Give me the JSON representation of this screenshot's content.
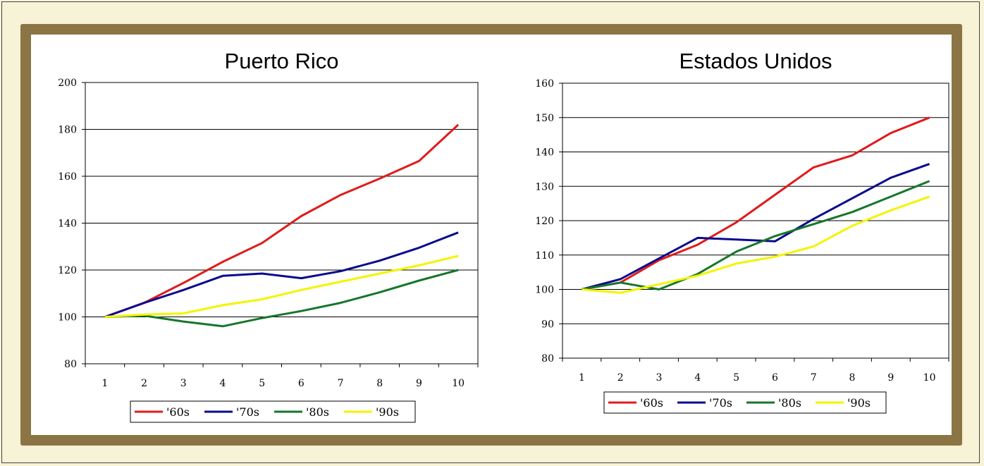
{
  "chart_data": [
    {
      "type": "line",
      "title": "Puerto Rico",
      "x": [
        1,
        2,
        3,
        4,
        5,
        6,
        7,
        8,
        9,
        10
      ],
      "ylim": [
        80,
        200
      ],
      "yticks": [
        80,
        100,
        120,
        140,
        160,
        180,
        200
      ],
      "grid": true,
      "legend": "bottom",
      "series": [
        {
          "name": "'60s",
          "color": "#e01b1b",
          "values": [
            100,
            106,
            114.5,
            123.5,
            131.5,
            143,
            152,
            159,
            166.5,
            182
          ]
        },
        {
          "name": "'70s",
          "color": "#0a0a8c",
          "values": [
            100,
            106,
            111.5,
            117.5,
            118.5,
            116.5,
            119.5,
            124,
            129.5,
            136
          ]
        },
        {
          "name": "'80s",
          "color": "#16762a",
          "values": [
            100,
            100.5,
            98,
            96,
            99.5,
            102.5,
            106,
            110.5,
            115.5,
            120
          ]
        },
        {
          "name": "'90s",
          "color": "#f4f400",
          "values": [
            100,
            101,
            101.5,
            105,
            107.5,
            111.5,
            115,
            118.5,
            122,
            126
          ]
        }
      ]
    },
    {
      "type": "line",
      "title": "Estados Unidos",
      "x": [
        1,
        2,
        3,
        4,
        5,
        6,
        7,
        8,
        9,
        10
      ],
      "ylim": [
        80,
        160
      ],
      "yticks": [
        80,
        90,
        100,
        110,
        120,
        130,
        140,
        150,
        160
      ],
      "grid": true,
      "legend": "bottom",
      "series": [
        {
          "name": "'60s",
          "color": "#e01b1b",
          "values": [
            100,
            102,
            108.5,
            113,
            119.5,
            127.5,
            135.5,
            139,
            145.5,
            150
          ]
        },
        {
          "name": "'70s",
          "color": "#0a0a8c",
          "values": [
            100,
            103,
            109,
            115,
            114.5,
            114,
            120.5,
            126.5,
            132.5,
            136.5
          ]
        },
        {
          "name": "'80s",
          "color": "#16762a",
          "values": [
            100,
            102,
            100,
            104.5,
            111,
            115.5,
            119,
            122.5,
            127,
            131.5
          ]
        },
        {
          "name": "'90s",
          "color": "#f4f400",
          "values": [
            100,
            99,
            101.5,
            104,
            107.5,
            109.5,
            112.5,
            118.5,
            123,
            127
          ]
        }
      ]
    }
  ]
}
